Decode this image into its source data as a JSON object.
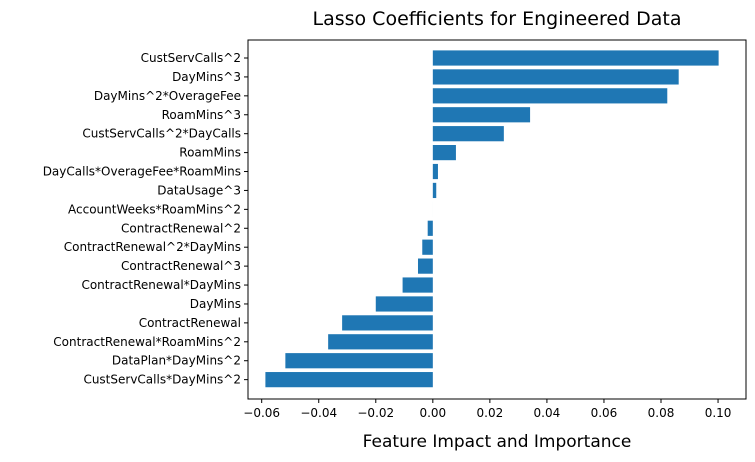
{
  "chart_data": {
    "type": "bar",
    "orientation": "horizontal",
    "title": "Lasso Coefficients for Engineered Data",
    "xlabel": "Feature Impact and Importance",
    "ylabel": "",
    "xlim": [
      -0.0648,
      0.1098
    ],
    "xticks": [
      -0.06,
      -0.04,
      -0.02,
      0.0,
      0.02,
      0.04,
      0.06,
      0.08,
      0.1
    ],
    "xtick_labels": [
      "−0.06",
      "−0.04",
      "−0.02",
      "0.00",
      "0.02",
      "0.04",
      "0.06",
      "0.08",
      "0.10"
    ],
    "bar_color": "#1f77b4",
    "grid": false,
    "categories": [
      "CustServCalls^2",
      "DayMins^3",
      "DayMins^2*OverageFee",
      "RoamMins^3",
      "CustServCalls^2*DayCalls",
      "RoamMins",
      "DayCalls*OverageFee*RoamMins",
      "DataUsage^3",
      "AccountWeeks*RoamMins^2",
      "ContractRenewal^2",
      "ContractRenewal^2*DayMins",
      "ContractRenewal^3",
      "ContractRenewal*DayMins",
      "DayMins",
      "ContractRenewal",
      "ContractRenewal*RoamMins^2",
      "DataPlan*DayMins^2",
      "CustServCalls*DayMins^2"
    ],
    "values": [
      0.1002,
      0.0862,
      0.0822,
      0.0341,
      0.0249,
      0.0081,
      0.0018,
      0.0012,
      0.0,
      -0.0018,
      -0.0037,
      -0.0052,
      -0.0106,
      -0.02,
      -0.0318,
      -0.0367,
      -0.0517,
      -0.0587
    ]
  }
}
